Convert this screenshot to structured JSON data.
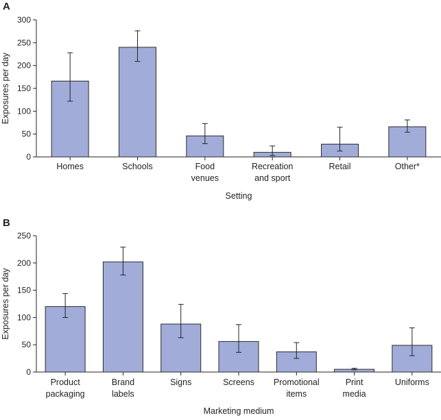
{
  "colors": {
    "bar": "#a1acd9",
    "bar_stroke": "#2a2a2a",
    "axis": "#222222"
  },
  "chart_data": [
    {
      "panel": "A",
      "type": "bar",
      "categories": [
        [
          "Homes"
        ],
        [
          "Schools"
        ],
        [
          "Food",
          "venues"
        ],
        [
          "Recreation",
          "and sport"
        ],
        [
          "Retail"
        ],
        [
          "Other*"
        ]
      ],
      "values": [
        166,
        240,
        46,
        10,
        28,
        66
      ],
      "error_low": [
        122,
        209,
        29,
        3,
        13,
        54
      ],
      "error_high": [
        228,
        276,
        73,
        24,
        65,
        81
      ],
      "xlabel": "Setting",
      "ylabel": "Exposures per day",
      "ylim": [
        0,
        300
      ],
      "yticks": [
        0,
        50,
        100,
        150,
        200,
        250,
        300
      ],
      "grid": false
    },
    {
      "panel": "B",
      "type": "bar",
      "categories": [
        [
          "Product",
          "packaging"
        ],
        [
          "Brand",
          "labels"
        ],
        [
          "Signs"
        ],
        [
          "Screens"
        ],
        [
          "Promotional",
          "items"
        ],
        [
          "Print",
          "media"
        ],
        [
          "Uniforms"
        ]
      ],
      "values": [
        120,
        202,
        88,
        56,
        37,
        5,
        49
      ],
      "error_low": [
        100,
        178,
        63,
        36,
        25,
        4,
        30
      ],
      "error_high": [
        144,
        229,
        124,
        87,
        54,
        7,
        81
      ],
      "xlabel": "Marketing medium",
      "ylabel": "Exposures per day",
      "ylim": [
        0,
        250
      ],
      "yticks": [
        0,
        50,
        100,
        150,
        200,
        250
      ],
      "grid": false
    }
  ]
}
